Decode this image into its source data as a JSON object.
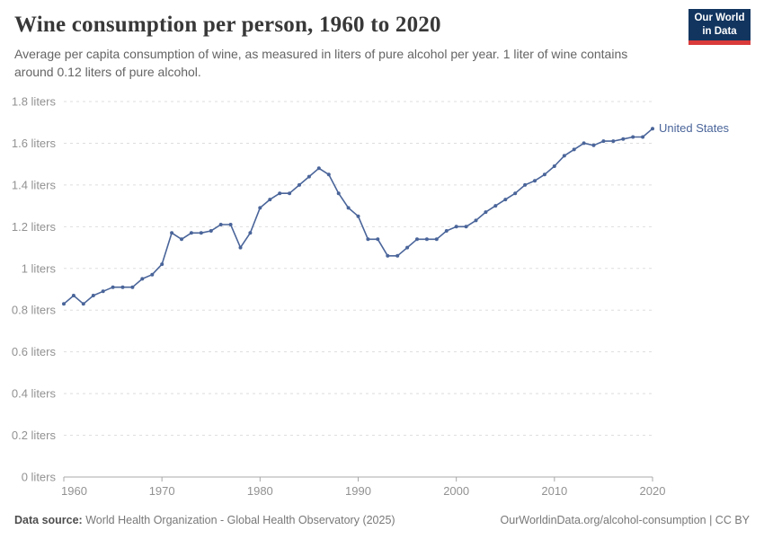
{
  "header": {
    "title": "Wine consumption per person, 1960 to 2020",
    "subtitle": "Average per capita consumption of wine, as measured in liters of pure alcohol per year. 1 liter of wine contains around 0.12 liters of pure alcohol.",
    "logo": {
      "line1": "Our World",
      "line2": "in Data"
    }
  },
  "footer": {
    "datasource_label": "Data source:",
    "datasource_text": " World Health Organization - Global Health Observatory (2025)",
    "link_text": "OurWorldinData.org/alcohol-consumption | CC BY"
  },
  "colors": {
    "series": "#4a659a",
    "grid": "#dedede",
    "axis": "#a8a8a8",
    "tick_text": "#929292"
  },
  "chart_data": {
    "type": "line",
    "title": "Wine consumption per person, 1960 to 2020",
    "xlabel": "",
    "ylabel": "liters of pure alcohol per year",
    "xlim": [
      1960,
      2020
    ],
    "ylim": [
      0,
      1.8
    ],
    "grid": "horizontal-dashed",
    "legend": "end-of-line-label",
    "x_ticks": [
      1960,
      1970,
      1980,
      1990,
      2000,
      2010,
      2020
    ],
    "y_ticks": [
      {
        "value": 0,
        "label": "0 liters"
      },
      {
        "value": 0.2,
        "label": "0.2 liters"
      },
      {
        "value": 0.4,
        "label": "0.4 liters"
      },
      {
        "value": 0.6,
        "label": "0.6 liters"
      },
      {
        "value": 0.8,
        "label": "0.8 liters"
      },
      {
        "value": 1,
        "label": "1 liters"
      },
      {
        "value": 1.2,
        "label": "1.2 liters"
      },
      {
        "value": 1.4,
        "label": "1.4 liters"
      },
      {
        "value": 1.6,
        "label": "1.6 liters"
      },
      {
        "value": 1.8,
        "label": "1.8 liters"
      }
    ],
    "series": [
      {
        "name": "United States",
        "color": "#4a659a",
        "x": [
          1960,
          1961,
          1962,
          1963,
          1964,
          1965,
          1966,
          1967,
          1968,
          1969,
          1970,
          1971,
          1972,
          1973,
          1974,
          1975,
          1976,
          1977,
          1978,
          1979,
          1980,
          1981,
          1982,
          1983,
          1984,
          1985,
          1986,
          1987,
          1988,
          1989,
          1990,
          1991,
          1992,
          1993,
          1994,
          1995,
          1996,
          1997,
          1998,
          1999,
          2000,
          2001,
          2002,
          2003,
          2004,
          2005,
          2006,
          2007,
          2008,
          2009,
          2010,
          2011,
          2012,
          2013,
          2014,
          2015,
          2016,
          2017,
          2018,
          2019,
          2020
        ],
        "values": [
          0.83,
          0.87,
          0.83,
          0.87,
          0.89,
          0.91,
          0.91,
          0.91,
          0.95,
          0.97,
          1.02,
          1.17,
          1.14,
          1.17,
          1.17,
          1.18,
          1.21,
          1.21,
          1.1,
          1.17,
          1.29,
          1.33,
          1.36,
          1.36,
          1.4,
          1.44,
          1.48,
          1.45,
          1.36,
          1.29,
          1.25,
          1.14,
          1.14,
          1.06,
          1.06,
          1.1,
          1.14,
          1.14,
          1.14,
          1.18,
          1.2,
          1.2,
          1.23,
          1.27,
          1.3,
          1.33,
          1.36,
          1.4,
          1.42,
          1.45,
          1.49,
          1.54,
          1.57,
          1.6,
          1.59,
          1.61,
          1.61,
          1.62,
          1.63,
          1.63,
          1.67
        ]
      }
    ]
  }
}
